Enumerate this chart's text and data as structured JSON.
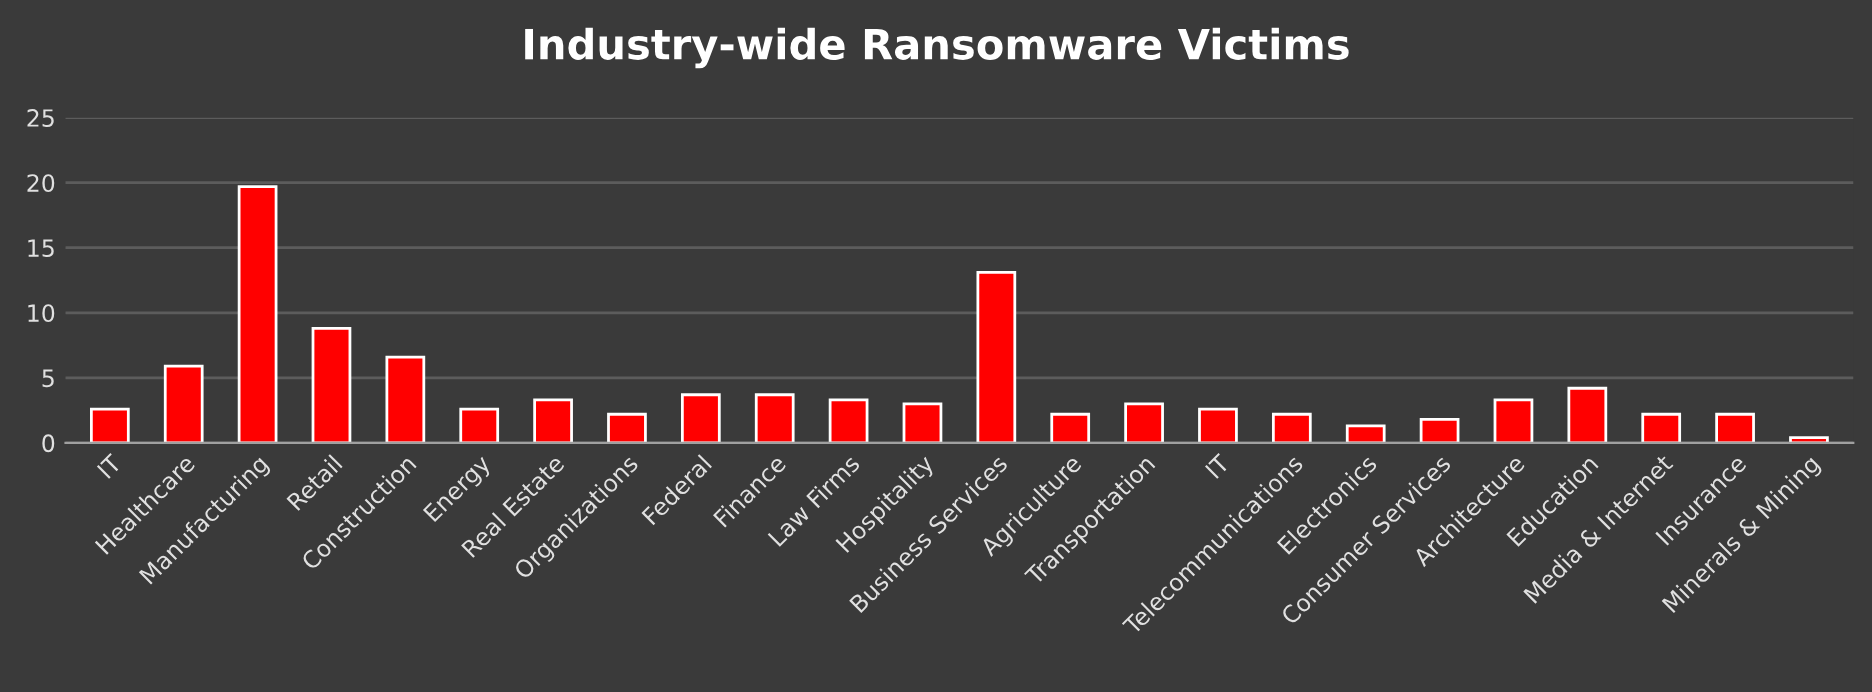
{
  "chart_data": {
    "type": "bar",
    "title": "Industry-wide Ransomware Victims",
    "categories": [
      "IT",
      "Healthcare",
      "Manufacturing",
      "Retail",
      "Construction",
      "Energy",
      "Real Estate",
      "Organizations",
      "Federal",
      "Finance",
      "Law Firms",
      "Hospitality",
      "Business Services",
      "Agriculture",
      "Transportation",
      "IT",
      "Telecommunications",
      "Electronics",
      "Consumer Services",
      "Architecture",
      "Education",
      "Media & Internet",
      "Insurance",
      "Minerals & Mining"
    ],
    "values": [
      2.6,
      5.9,
      19.7,
      8.8,
      6.6,
      2.6,
      3.3,
      2.2,
      3.7,
      3.7,
      3.3,
      3.0,
      13.1,
      2.2,
      3.0,
      2.6,
      2.2,
      1.3,
      1.8,
      3.3,
      4.2,
      2.2,
      2.2,
      0.4
    ],
    "color": "#ff0000",
    "ylim": [
      0,
      25
    ],
    "yticks": [
      0,
      5,
      10,
      15,
      20,
      25
    ],
    "grid": "y",
    "legend": false
  }
}
